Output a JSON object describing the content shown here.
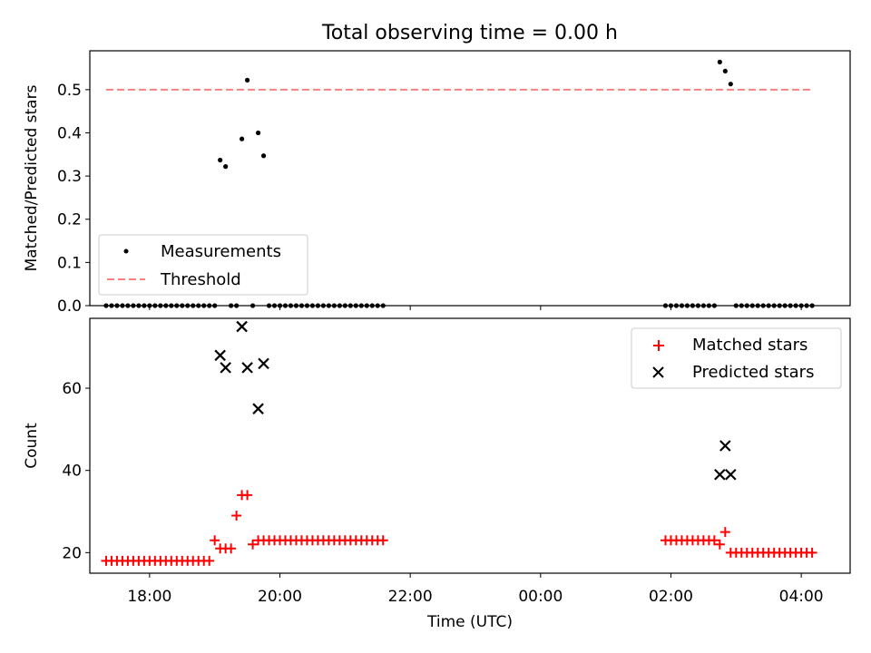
{
  "figure": {
    "title": "Total observing time = 0.00 h",
    "xlabel": "Time (UTC)",
    "x_ticks": [
      "18:00",
      "20:00",
      "22:00",
      "00:00",
      "02:00",
      "04:00"
    ]
  },
  "chart_data": [
    {
      "type": "scatter",
      "ylabel": "Matched/Predicted stars",
      "ylim": [
        0,
        0.59
      ],
      "y_ticks": [
        "0.0",
        "0.1",
        "0.2",
        "0.3",
        "0.4",
        "0.5"
      ],
      "xlim": [
        "17:05",
        "04:45"
      ],
      "grid": false,
      "legend": "lower-left",
      "series": [
        {
          "name": "Measurements",
          "style": "dot",
          "color": "#000000",
          "points": [
            [
              "17:20",
              0
            ],
            [
              "17:25",
              0
            ],
            [
              "17:30",
              0
            ],
            [
              "17:35",
              0
            ],
            [
              "17:40",
              0
            ],
            [
              "17:45",
              0
            ],
            [
              "17:50",
              0
            ],
            [
              "17:55",
              0
            ],
            [
              "18:00",
              0
            ],
            [
              "18:05",
              0
            ],
            [
              "18:10",
              0
            ],
            [
              "18:15",
              0
            ],
            [
              "18:20",
              0
            ],
            [
              "18:25",
              0
            ],
            [
              "18:30",
              0
            ],
            [
              "18:35",
              0
            ],
            [
              "18:40",
              0
            ],
            [
              "18:45",
              0
            ],
            [
              "18:50",
              0
            ],
            [
              "18:55",
              0
            ],
            [
              "19:00",
              0
            ],
            [
              "19:05",
              0.337
            ],
            [
              "19:10",
              0.322
            ],
            [
              "19:15",
              0
            ],
            [
              "19:20",
              0
            ],
            [
              "19:25",
              0.386
            ],
            [
              "19:30",
              0.522
            ],
            [
              "19:35",
              0
            ],
            [
              "19:40",
              0.4
            ],
            [
              "19:45",
              0.347
            ],
            [
              "19:50",
              0
            ],
            [
              "19:55",
              0
            ],
            [
              "20:00",
              0
            ],
            [
              "20:05",
              0
            ],
            [
              "20:10",
              0
            ],
            [
              "20:15",
              0
            ],
            [
              "20:20",
              0
            ],
            [
              "20:25",
              0
            ],
            [
              "20:30",
              0
            ],
            [
              "20:35",
              0
            ],
            [
              "20:40",
              0
            ],
            [
              "20:45",
              0
            ],
            [
              "20:50",
              0
            ],
            [
              "20:55",
              0
            ],
            [
              "21:00",
              0
            ],
            [
              "21:05",
              0
            ],
            [
              "21:10",
              0
            ],
            [
              "21:15",
              0
            ],
            [
              "21:20",
              0
            ],
            [
              "21:25",
              0
            ],
            [
              "21:30",
              0
            ],
            [
              "21:35",
              0
            ],
            [
              "01:55",
              0
            ],
            [
              "02:00",
              0
            ],
            [
              "02:05",
              0
            ],
            [
              "02:10",
              0
            ],
            [
              "02:15",
              0
            ],
            [
              "02:20",
              0
            ],
            [
              "02:25",
              0
            ],
            [
              "02:30",
              0
            ],
            [
              "02:35",
              0
            ],
            [
              "02:40",
              0
            ],
            [
              "02:45",
              0.564
            ],
            [
              "02:50",
              0.543
            ],
            [
              "02:55",
              0.513
            ],
            [
              "03:00",
              0
            ],
            [
              "03:05",
              0
            ],
            [
              "03:10",
              0
            ],
            [
              "03:15",
              0
            ],
            [
              "03:20",
              0
            ],
            [
              "03:25",
              0
            ],
            [
              "03:30",
              0
            ],
            [
              "03:35",
              0
            ],
            [
              "03:40",
              0
            ],
            [
              "03:45",
              0
            ],
            [
              "03:50",
              0
            ],
            [
              "03:55",
              0
            ],
            [
              "04:00",
              0
            ],
            [
              "04:05",
              0
            ],
            [
              "04:10",
              0
            ]
          ]
        },
        {
          "name": "Threshold",
          "style": "dashed-line",
          "color": "#ff7f7f",
          "points": [
            [
              "17:20",
              0.5
            ],
            [
              "04:10",
              0.5
            ]
          ]
        }
      ]
    },
    {
      "type": "scatter",
      "ylabel": "Count",
      "ylim": [
        15,
        77
      ],
      "y_ticks": [
        "20",
        "40",
        "60"
      ],
      "xlim": [
        "17:05",
        "04:45"
      ],
      "grid": false,
      "legend": "upper-right",
      "series": [
        {
          "name": "Matched stars",
          "style": "plus",
          "color": "#ff0000",
          "points": [
            [
              "17:20",
              18
            ],
            [
              "17:25",
              18
            ],
            [
              "17:30",
              18
            ],
            [
              "17:35",
              18
            ],
            [
              "17:40",
              18
            ],
            [
              "17:45",
              18
            ],
            [
              "17:50",
              18
            ],
            [
              "17:55",
              18
            ],
            [
              "18:00",
              18
            ],
            [
              "18:05",
              18
            ],
            [
              "18:10",
              18
            ],
            [
              "18:15",
              18
            ],
            [
              "18:20",
              18
            ],
            [
              "18:25",
              18
            ],
            [
              "18:30",
              18
            ],
            [
              "18:35",
              18
            ],
            [
              "18:40",
              18
            ],
            [
              "18:45",
              18
            ],
            [
              "18:50",
              18
            ],
            [
              "18:55",
              18
            ],
            [
              "19:00",
              23
            ],
            [
              "19:05",
              21
            ],
            [
              "19:10",
              21
            ],
            [
              "19:15",
              21
            ],
            [
              "19:20",
              29
            ],
            [
              "19:25",
              34
            ],
            [
              "19:30",
              34
            ],
            [
              "19:35",
              22
            ],
            [
              "19:40",
              23
            ],
            [
              "19:45",
              23
            ],
            [
              "19:50",
              23
            ],
            [
              "19:55",
              23
            ],
            [
              "20:00",
              23
            ],
            [
              "20:05",
              23
            ],
            [
              "20:10",
              23
            ],
            [
              "20:15",
              23
            ],
            [
              "20:20",
              23
            ],
            [
              "20:25",
              23
            ],
            [
              "20:30",
              23
            ],
            [
              "20:35",
              23
            ],
            [
              "20:40",
              23
            ],
            [
              "20:45",
              23
            ],
            [
              "20:50",
              23
            ],
            [
              "20:55",
              23
            ],
            [
              "21:00",
              23
            ],
            [
              "21:05",
              23
            ],
            [
              "21:10",
              23
            ],
            [
              "21:15",
              23
            ],
            [
              "21:20",
              23
            ],
            [
              "21:25",
              23
            ],
            [
              "21:30",
              23
            ],
            [
              "21:35",
              23
            ],
            [
              "01:55",
              23
            ],
            [
              "02:00",
              23
            ],
            [
              "02:05",
              23
            ],
            [
              "02:10",
              23
            ],
            [
              "02:15",
              23
            ],
            [
              "02:20",
              23
            ],
            [
              "02:25",
              23
            ],
            [
              "02:30",
              23
            ],
            [
              "02:35",
              23
            ],
            [
              "02:40",
              23
            ],
            [
              "02:45",
              22
            ],
            [
              "02:50",
              25
            ],
            [
              "02:55",
              20
            ],
            [
              "03:00",
              20
            ],
            [
              "03:05",
              20
            ],
            [
              "03:10",
              20
            ],
            [
              "03:15",
              20
            ],
            [
              "03:20",
              20
            ],
            [
              "03:25",
              20
            ],
            [
              "03:30",
              20
            ],
            [
              "03:35",
              20
            ],
            [
              "03:40",
              20
            ],
            [
              "03:45",
              20
            ],
            [
              "03:50",
              20
            ],
            [
              "03:55",
              20
            ],
            [
              "04:00",
              20
            ],
            [
              "04:05",
              20
            ],
            [
              "04:10",
              20
            ]
          ]
        },
        {
          "name": "Predicted stars",
          "style": "x",
          "color": "#000000",
          "points": [
            [
              "19:05",
              68
            ],
            [
              "19:10",
              65
            ],
            [
              "19:25",
              75
            ],
            [
              "19:30",
              65
            ],
            [
              "19:40",
              55
            ],
            [
              "19:45",
              66
            ],
            [
              "02:45",
              39
            ],
            [
              "02:50",
              46
            ],
            [
              "02:55",
              39
            ]
          ]
        }
      ]
    }
  ]
}
